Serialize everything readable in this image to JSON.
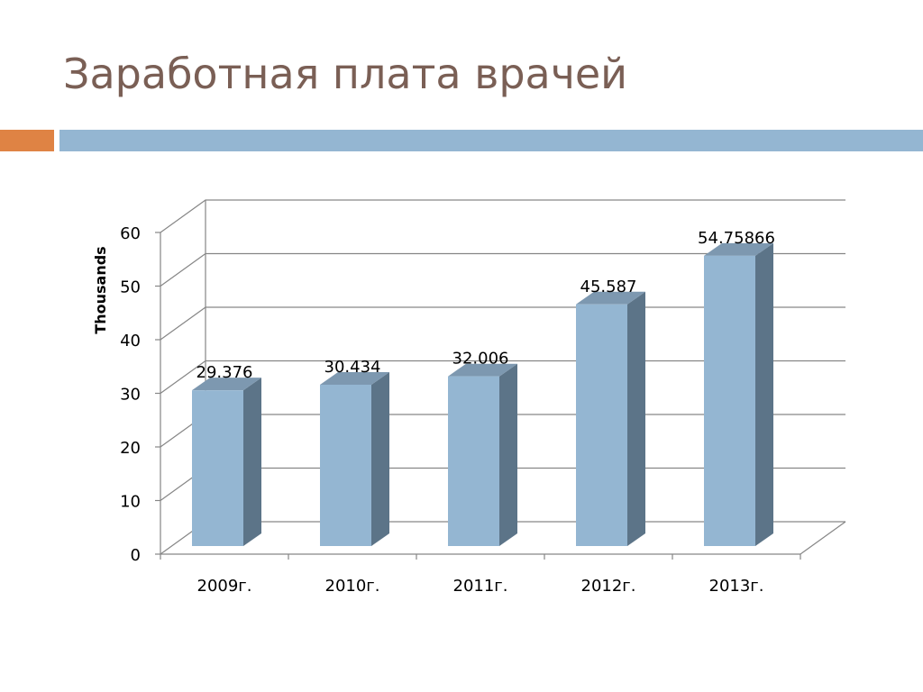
{
  "slide": {
    "title": "Заработная плата врачей"
  },
  "colors": {
    "title": "#7a5f55",
    "accent_bar": "#df8344",
    "rule_bar": "#94b6d2",
    "bar_front": "#94b6d2",
    "bar_side": "#5c7488",
    "bar_top": "#7d98b0",
    "gridline": "#868686"
  },
  "chart_data": {
    "type": "bar",
    "style": "3d-column",
    "categories": [
      "2009г.",
      "2010г.",
      "2011г.",
      "2012г.",
      "2013г."
    ],
    "values": [
      29.376,
      30.434,
      32.006,
      45.587,
      54.75866
    ],
    "value_labels": [
      "29.376",
      "30.434",
      "32.006",
      "45.587",
      "54.75866"
    ],
    "ylabel": "Thousands",
    "ylim": [
      0,
      60
    ],
    "yticks": [
      0,
      10,
      20,
      30,
      40,
      50,
      60
    ],
    "grid": true,
    "legend": "none"
  }
}
